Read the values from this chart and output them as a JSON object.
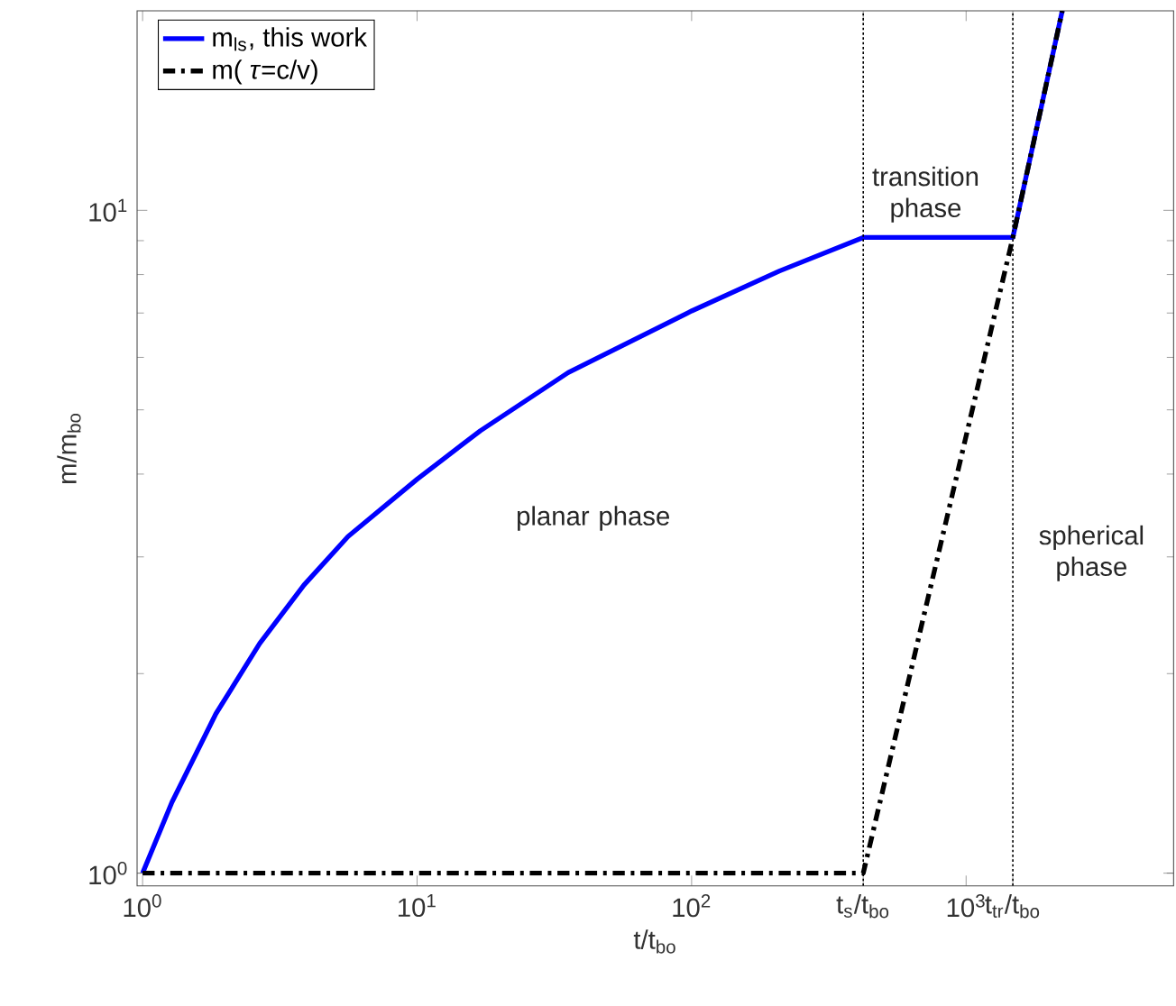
{
  "chart_data": {
    "type": "line",
    "xlabel": "t/t$_{bo}$",
    "ylabel": "m/m$_{bo}$",
    "log": "xy",
    "xlim": [
      0.955,
      5700
    ],
    "ylim": [
      0.957,
      20
    ],
    "xticks": [
      {
        "value": 1,
        "label": "10$^{0}$"
      },
      {
        "value": 10,
        "label": "10$^{1}$"
      },
      {
        "value": 100,
        "label": "10$^{2}$"
      },
      {
        "value": 422,
        "label": "t$_{s}$/t$_{bo}$"
      },
      {
        "value": 1000,
        "label": "10$^{3}$"
      },
      {
        "value": 1480,
        "label": "t$_{tr}$/t$_{bo}$"
      }
    ],
    "yticks": [
      {
        "value": 1,
        "label": "10$^{0}$"
      },
      {
        "value": 10,
        "label": "10$^{1}$"
      }
    ],
    "series": [
      {
        "name": "m$_{ls}$, this work",
        "color": "#0000ff",
        "line_style": "solid",
        "x": [
          1,
          1.28,
          1.85,
          2.67,
          3.87,
          5.6,
          10,
          17,
          35.5,
          100,
          209,
          422,
          1480,
          2240
        ],
        "values": [
          1,
          1.28,
          1.74,
          2.22,
          2.72,
          3.22,
          3.93,
          4.65,
          5.69,
          7.05,
          8.1,
          9.1,
          9.1,
          20
        ]
      },
      {
        "name": "m( *τ*=c/v)",
        "color": "#000000",
        "line_style": "dashed",
        "x": [
          1,
          422,
          1480,
          2240
        ],
        "values": [
          1,
          1,
          9.1,
          20
        ]
      }
    ],
    "ref_lines": [
      {
        "axis": "x",
        "value": 422,
        "color": "#000000",
        "line_style": "dotted"
      },
      {
        "axis": "x",
        "value": 1480,
        "color": "#000000",
        "line_style": "dotted"
      }
    ],
    "annotations": [
      "planar phase",
      "transition phase",
      "spherical phase"
    ],
    "legend": "top left",
    "grid": false
  }
}
